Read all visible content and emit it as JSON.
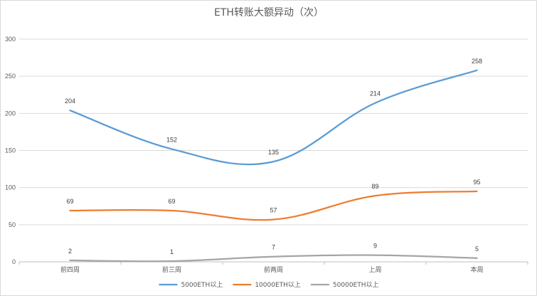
{
  "chart_data": {
    "type": "line",
    "title": "ETH转账大额异动（次）",
    "categories": [
      "前四周",
      "前三周",
      "前两周",
      "上周",
      "本周"
    ],
    "ylim": [
      0,
      300
    ],
    "yticks": [
      0,
      50,
      100,
      150,
      200,
      250,
      300
    ],
    "grid": true,
    "legend_position": "bottom",
    "series": [
      {
        "name": "5000ETH以上",
        "color": "#5b9bd5",
        "values": [
          204,
          152,
          135,
          214,
          258
        ]
      },
      {
        "name": "10000ETH以上",
        "color": "#ed7d31",
        "values": [
          69,
          69,
          57,
          89,
          95
        ]
      },
      {
        "name": "50000ETH以上",
        "color": "#a5a5a5",
        "values": [
          2,
          1,
          7,
          9,
          5
        ]
      }
    ]
  }
}
